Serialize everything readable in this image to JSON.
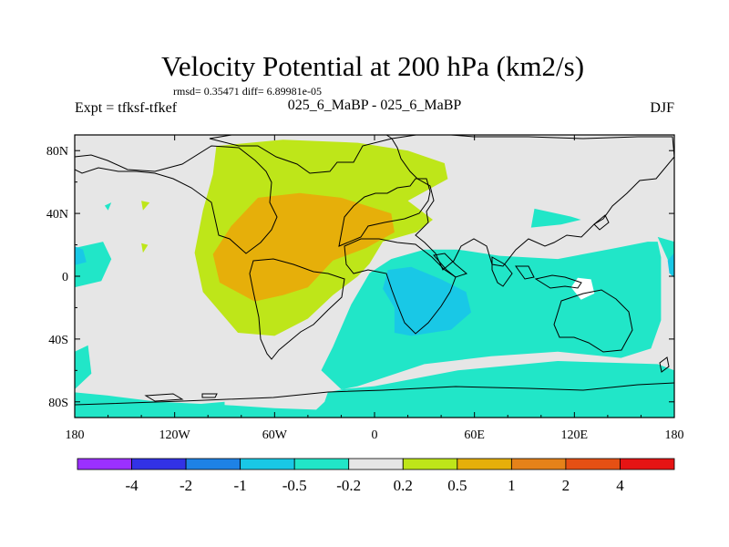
{
  "chart_data": {
    "type": "heatmap",
    "title": "Velocity Potential at 200 hPa (km2/s)",
    "stats": "rmsd= 0.35471 diff= 6.89981e-05",
    "left_label": "Expt = tfksf-tfkef",
    "center_label": "025_6_MaBP - 025_6_MaBP",
    "right_label": "DJF",
    "xlim": [
      -180,
      180
    ],
    "ylim": [
      -90,
      90
    ],
    "x_ticks": [
      {
        "value": -180,
        "label": "180"
      },
      {
        "value": -120,
        "label": "120W"
      },
      {
        "value": -60,
        "label": "60W"
      },
      {
        "value": 0,
        "label": "0"
      },
      {
        "value": 60,
        "label": "60E"
      },
      {
        "value": 120,
        "label": "120E"
      },
      {
        "value": 180,
        "label": "180"
      }
    ],
    "y_ticks": [
      {
        "value": 80,
        "label": "80N"
      },
      {
        "value": 40,
        "label": "40N"
      },
      {
        "value": 0,
        "label": "0"
      },
      {
        "value": -40,
        "label": "40S"
      },
      {
        "value": -80,
        "label": "80S"
      }
    ],
    "colorbar": {
      "colors": [
        "#9b30ff",
        "#3232e6",
        "#1e82e6",
        "#19c8e6",
        "#21e6c8",
        "#e6e6e6",
        "#bee619",
        "#e6af0a",
        "#e68219",
        "#e65014",
        "#e61414"
      ],
      "labels": [
        "-4",
        "-2",
        "-1",
        "-0.5",
        "-0.2",
        "0.2",
        "0.5",
        "1",
        "2",
        "4"
      ]
    },
    "field_regions": [
      {
        "level": "-0.2 to -0.5",
        "color": "#21e6c8",
        "polygons": [
          [
            [
              -180,
              18
            ],
            [
              -163,
              22
            ],
            [
              -158,
              11
            ],
            [
              -164,
              -3
            ],
            [
              -180,
              -7
            ]
          ],
          [
            [
              180,
              22
            ],
            [
              170,
              25
            ],
            [
              178,
              6
            ],
            [
              180,
              3
            ]
          ],
          [
            [
              -3,
              2
            ],
            [
              10,
              11
            ],
            [
              30,
              17
            ],
            [
              50,
              17
            ],
            [
              75,
              13
            ],
            [
              110,
              11
            ],
            [
              145,
              18
            ],
            [
              164,
              22
            ],
            [
              170,
              22
            ],
            [
              172,
              12
            ],
            [
              172,
              -28
            ],
            [
              166,
              -46
            ],
            [
              148,
              -52
            ],
            [
              110,
              -48
            ],
            [
              70,
              -51
            ],
            [
              30,
              -56
            ],
            [
              -10,
              -70
            ],
            [
              -28,
              -74
            ],
            [
              -30,
              -80
            ],
            [
              -35,
              -85
            ],
            [
              -60,
              -84
            ],
            [
              -90,
              -82
            ],
            [
              -130,
              -80
            ],
            [
              -160,
              -76
            ],
            [
              -180,
              -74
            ],
            [
              -180,
              -90
            ],
            [
              180,
              -90
            ],
            [
              180,
              -60
            ],
            [
              170,
              -56
            ],
            [
              110,
              -54
            ],
            [
              50,
              -60
            ],
            [
              0,
              -70
            ],
            [
              -20,
              -72
            ],
            [
              -32,
              -60
            ],
            [
              -25,
              -45
            ],
            [
              -14,
              -18
            ]
          ],
          [
            [
              -180,
              -48
            ],
            [
              -172,
              -44
            ],
            [
              -170,
              -62
            ],
            [
              -180,
              -72
            ]
          ],
          [
            [
              -90,
              -80
            ],
            [
              -112,
              -82
            ],
            [
              -130,
              -88
            ],
            [
              -90,
              -88
            ]
          ],
          [
            [
              96,
              43
            ],
            [
              118,
              38
            ],
            [
              124,
              36
            ],
            [
              112,
              33
            ],
            [
              94,
              31
            ]
          ],
          [
            [
              -162,
              45
            ],
            [
              -158,
              47
            ],
            [
              -160,
              42
            ]
          ]
        ]
      },
      {
        "level": "-0.5 to -1",
        "color": "#19c8e6",
        "polygons": [
          [
            [
              -180,
              19
            ],
            [
              -175,
              17
            ],
            [
              -173,
              9
            ],
            [
              -180,
              7
            ]
          ],
          [
            [
              180,
              15
            ],
            [
              176,
              10
            ],
            [
              177,
              2
            ],
            [
              180,
              -1
            ]
          ],
          [
            [
              8,
              4
            ],
            [
              22,
              6
            ],
            [
              40,
              -2
            ],
            [
              55,
              -10
            ],
            [
              58,
              -23
            ],
            [
              46,
              -34
            ],
            [
              22,
              -38
            ],
            [
              12,
              -36
            ],
            [
              12,
              -20
            ],
            [
              5,
              -8
            ]
          ]
        ]
      },
      {
        "level": "0.2 to 0.5",
        "color": "#bee619",
        "polygons": [
          [
            [
              -95,
              83
            ],
            [
              -55,
              87
            ],
            [
              -10,
              85
            ],
            [
              20,
              80
            ],
            [
              42,
              72
            ],
            [
              44,
              62
            ],
            [
              20,
              48
            ],
            [
              35,
              36
            ],
            [
              25,
              28
            ],
            [
              5,
              22
            ],
            [
              -3,
              8
            ],
            [
              -10,
              0
            ],
            [
              -25,
              -12
            ],
            [
              -40,
              -27
            ],
            [
              -60,
              -38
            ],
            [
              -82,
              -36
            ],
            [
              -103,
              -10
            ],
            [
              -108,
              15
            ],
            [
              -103,
              42
            ],
            [
              -97,
              65
            ]
          ],
          [
            [
              -140,
              48
            ],
            [
              -135,
              47
            ],
            [
              -139,
              42
            ]
          ],
          [
            [
              -140,
              21
            ],
            [
              -136,
              20
            ],
            [
              -139,
              15
            ]
          ]
        ]
      },
      {
        "level": "0.5 to 1",
        "color": "#e6af0a",
        "polygons": [
          [
            [
              -70,
              50
            ],
            [
              -45,
              53
            ],
            [
              -20,
              50
            ],
            [
              10,
              40
            ],
            [
              12,
              28
            ],
            [
              -5,
              18
            ],
            [
              -25,
              10
            ],
            [
              -40,
              -7
            ],
            [
              -55,
              -12
            ],
            [
              -72,
              -16
            ],
            [
              -93,
              -4
            ],
            [
              -97,
              14
            ],
            [
              -86,
              32
            ]
          ]
        ]
      }
    ],
    "white_patches": [
      [
        [
          122,
          -1
        ],
        [
          130,
          -2
        ],
        [
          132,
          -11
        ],
        [
          124,
          -15
        ],
        [
          118,
          -7
        ]
      ]
    ]
  }
}
